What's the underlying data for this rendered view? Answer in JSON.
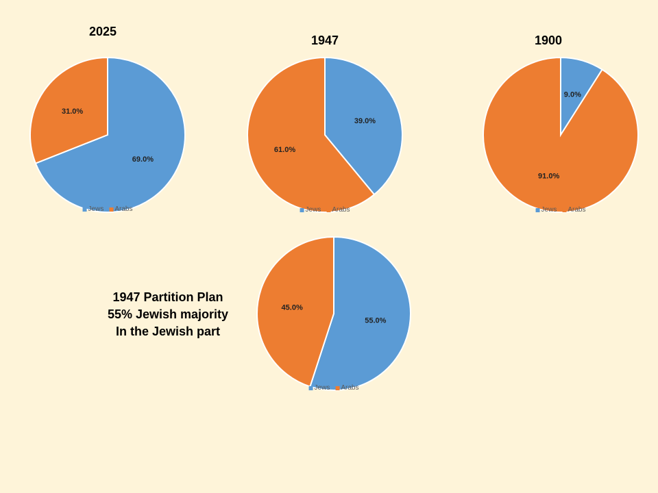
{
  "colors": {
    "jews": "#5B9BD5",
    "arabs": "#ED7D31",
    "background": "#FEF4D9"
  },
  "note": {
    "lines": [
      "1947 Partition Plan",
      "55% Jewish majority",
      "In the Jewish part"
    ]
  },
  "chart_data": [
    {
      "type": "pie",
      "title": "2025",
      "categories": [
        "Jews",
        "Arabs"
      ],
      "values": [
        69.0,
        31.0
      ],
      "labels": [
        "69.0%",
        "31.0%"
      ],
      "legend": "bottom"
    },
    {
      "type": "pie",
      "title": "1947",
      "categories": [
        "Jews",
        "Arabs"
      ],
      "values": [
        39.0,
        61.0
      ],
      "labels": [
        "39.0%",
        "61.0%"
      ],
      "legend": "bottom"
    },
    {
      "type": "pie",
      "title": "1900",
      "categories": [
        "Jews",
        "Arabs"
      ],
      "values": [
        9.0,
        91.0
      ],
      "labels": [
        "9.0%",
        "91.0%"
      ],
      "legend": "bottom"
    },
    {
      "type": "pie",
      "title": "",
      "categories": [
        "Jews",
        "Arabs"
      ],
      "values": [
        55.0,
        45.0
      ],
      "labels": [
        "55.0%",
        "45.0%"
      ],
      "legend": "bottom"
    }
  ]
}
